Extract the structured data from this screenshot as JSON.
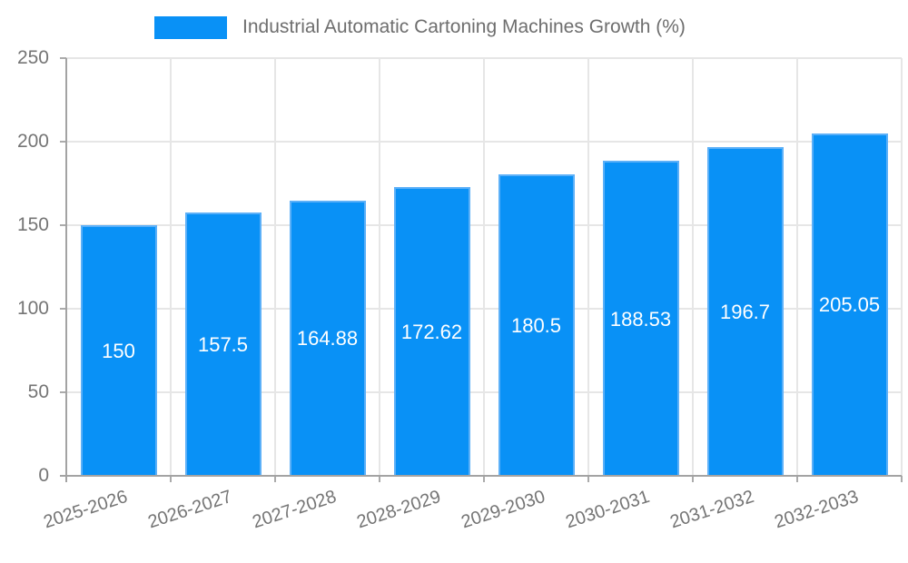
{
  "chart_data": {
    "type": "bar",
    "title": "Industrial Automatic Cartoning Machines Growth (%)",
    "categories": [
      "2025-2026",
      "2026-2027",
      "2027-2028",
      "2028-2029",
      "2029-2030",
      "2030-2031",
      "2031-2032",
      "2032-2033"
    ],
    "values": [
      150,
      157.5,
      164.88,
      172.62,
      180.5,
      188.53,
      196.7,
      205.05
    ],
    "value_labels": [
      "150",
      "157.5",
      "164.88",
      "172.62",
      "180.5",
      "188.53",
      "196.7",
      "205.05"
    ],
    "xlabel": "",
    "ylabel": "",
    "ylim": [
      0,
      250
    ],
    "ytick_step": 50,
    "ytick_labels": [
      "0",
      "50",
      "100",
      "150",
      "200",
      "250"
    ],
    "legend_position": "top",
    "grid": true,
    "colors": {
      "bar_fill": "#0991f6",
      "bar_border": "#5cb0f8",
      "grid_line": "#e6e6e6",
      "axis_line": "#a3a3a3",
      "tick_mark": "#ababab",
      "tick_text": "#757575",
      "legend_text": "#6e6e6e",
      "value_label_text": "#ffffff",
      "background": "#ffffff"
    }
  }
}
